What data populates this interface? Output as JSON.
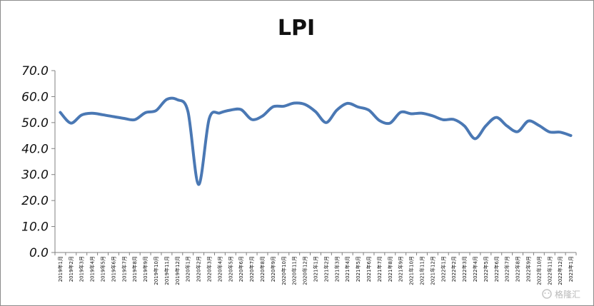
{
  "chart_data": {
    "type": "line",
    "title": "LPI",
    "xlabel": "",
    "ylabel": "",
    "ylim": [
      0,
      70
    ],
    "yticks": [
      "0.0",
      "10.0",
      "20.0",
      "30.0",
      "40.0",
      "50.0",
      "60.0",
      "70.0"
    ],
    "grid": false,
    "legend": "none",
    "line_color": "#4a78b4",
    "categories": [
      "2019年1月",
      "2019年2月",
      "2019年3月",
      "2019年4月",
      "2019年5月",
      "2019年6月",
      "2019年7月",
      "2019年8月",
      "2019年9月",
      "2019年10月",
      "2019年11月",
      "2019年12月",
      "2020年1月",
      "2020年2月",
      "2020年3月",
      "2020年4月",
      "2020年5月",
      "2020年6月",
      "2020年7月",
      "2020年8月",
      "2020年9月",
      "2020年10月",
      "2020年11月",
      "2020年12月",
      "2021年1月",
      "2021年2月",
      "2021年3月",
      "2021年4月",
      "2021年5月",
      "2021年6月",
      "2021年7月",
      "2021年8月",
      "2021年9月",
      "2021年10月",
      "2021年11月",
      "2021年12月",
      "2022年1月",
      "2022年2月",
      "2022年3月",
      "2022年4月",
      "2022年5月",
      "2022年6月",
      "2022年7月",
      "2022年8月",
      "2022年9月",
      "2022年10月",
      "2022年11月",
      "2022年12月",
      "2023年1月"
    ],
    "values": [
      53.9,
      49.8,
      52.9,
      53.6,
      53.0,
      52.3,
      51.6,
      51.1,
      53.8,
      54.6,
      58.9,
      58.8,
      54.3,
      26.2,
      51.5,
      53.7,
      54.8,
      55.0,
      51.2,
      52.5,
      56.1,
      56.3,
      57.5,
      57.0,
      54.2,
      50.0,
      54.8,
      57.4,
      56.0,
      54.8,
      50.8,
      49.8,
      54.0,
      53.4,
      53.6,
      52.6,
      51.1,
      51.2,
      48.7,
      43.8,
      48.7,
      52.0,
      48.7,
      46.5,
      50.6,
      48.9,
      46.4,
      46.3,
      45.0
    ]
  },
  "watermark": {
    "icon": "wechat-icon",
    "text": "格隆汇"
  }
}
